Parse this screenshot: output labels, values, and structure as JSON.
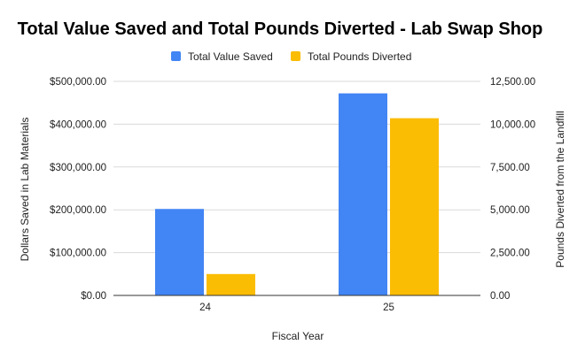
{
  "chart_data": {
    "type": "bar",
    "title": "Total Value Saved and Total Pounds Diverted - Lab Swap Shop",
    "xlabel": "Fiscal Year",
    "categories": [
      "24",
      "25"
    ],
    "series": [
      {
        "name": "Total Value Saved",
        "axis": "left",
        "color": "#4285F4",
        "values": [
          202000,
          472000
        ]
      },
      {
        "name": "Total Pounds Diverted",
        "axis": "right",
        "color": "#FBBC04",
        "values": [
          1250,
          10350
        ]
      }
    ],
    "y_left": {
      "label": "Dollars Saved in Lab Materials",
      "ylim": [
        0,
        500000
      ],
      "ticks": [
        "$0.00",
        "$100,000.00",
        "$200,000.00",
        "$300,000.00",
        "$400,000.00",
        "$500,000.00"
      ]
    },
    "y_right": {
      "label": "Pounds Diverted from the Landfill",
      "ylim": [
        0,
        12500
      ],
      "ticks": [
        "0.00",
        "2,500.00",
        "5,000.00",
        "7,500.00",
        "10,000.00",
        "12,500.00"
      ]
    },
    "legend": {
      "position": "top"
    },
    "grid": true
  }
}
